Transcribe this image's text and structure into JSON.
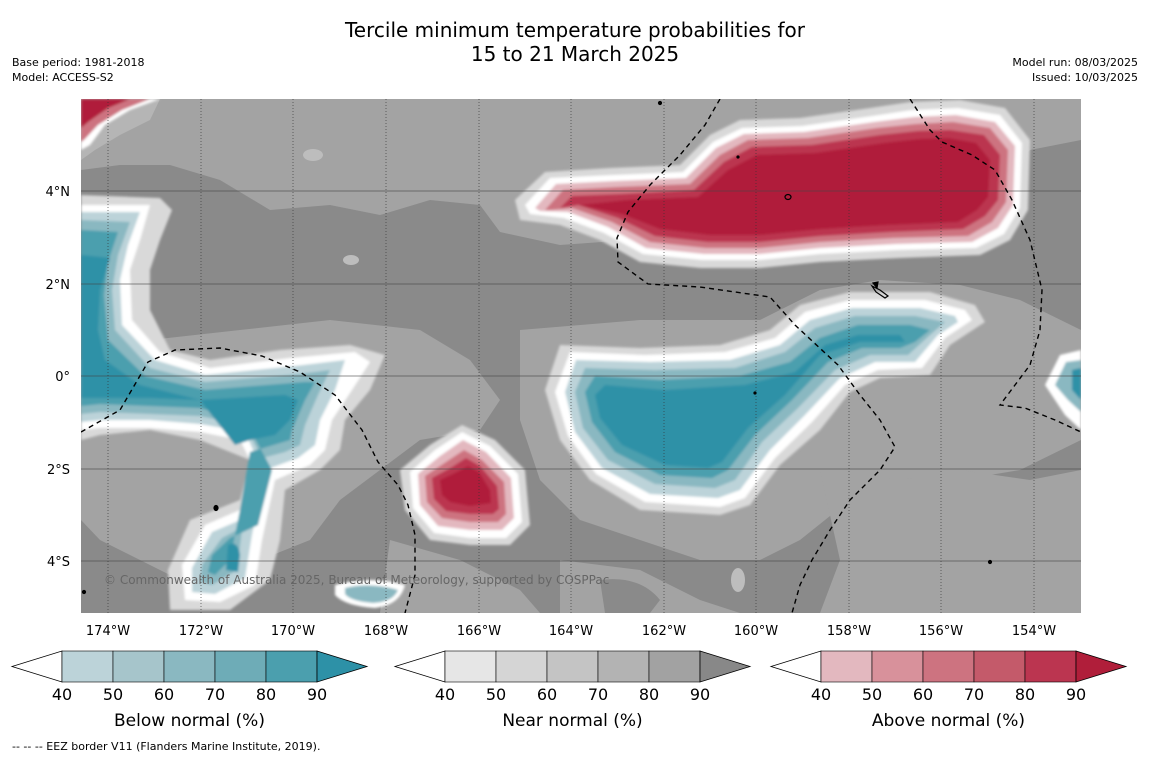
{
  "title": {
    "line1": "Tercile minimum temperature probabilities for",
    "line2": "15 to 21 March 2025"
  },
  "meta_left": {
    "base_period": "Base period: 1981-2018",
    "model": "Model: ACCESS-S2"
  },
  "meta_right": {
    "model_run": "Model run: 08/03/2025",
    "issued": "Issued: 10/03/2025"
  },
  "credit": "© Commonwealth of Australia 2025, Bureau of Meteorology, supported by COSPPac",
  "axes": {
    "lat_labels": [
      "4°N",
      "2°N",
      "0°",
      "2°S",
      "4°S"
    ],
    "lon_labels": [
      "174°W",
      "172°W",
      "170°W",
      "168°W",
      "166°W",
      "164°W",
      "162°W",
      "160°W",
      "158°W",
      "156°W",
      "154°W"
    ]
  },
  "colorbars": [
    {
      "title": "Below normal (%)",
      "ticks": [
        "40",
        "50",
        "60",
        "70",
        "80",
        "90"
      ],
      "colors": [
        "#bcd3d9",
        "#a6c5cb",
        "#8ab8c1",
        "#6eacb7",
        "#4b9fae",
        "#2d91a7"
      ]
    },
    {
      "title": "Near normal (%)",
      "ticks": [
        "40",
        "50",
        "60",
        "70",
        "80",
        "90"
      ],
      "colors": [
        "#e6e6e6",
        "#d5d5d5",
        "#c4c4c4",
        "#b3b3b3",
        "#a2a2a2",
        "#888888"
      ]
    },
    {
      "title": "Above normal (%)",
      "ticks": [
        "40",
        "50",
        "60",
        "70",
        "80",
        "90"
      ],
      "colors": [
        "#e3b8bf",
        "#d8919b",
        "#cd7380",
        "#c45a6a",
        "#bb3550",
        "#b01e3a"
      ]
    }
  ],
  "footnote": "--  --  -- EEZ border V11 (Flanders Marine Institute, 2019)."
}
